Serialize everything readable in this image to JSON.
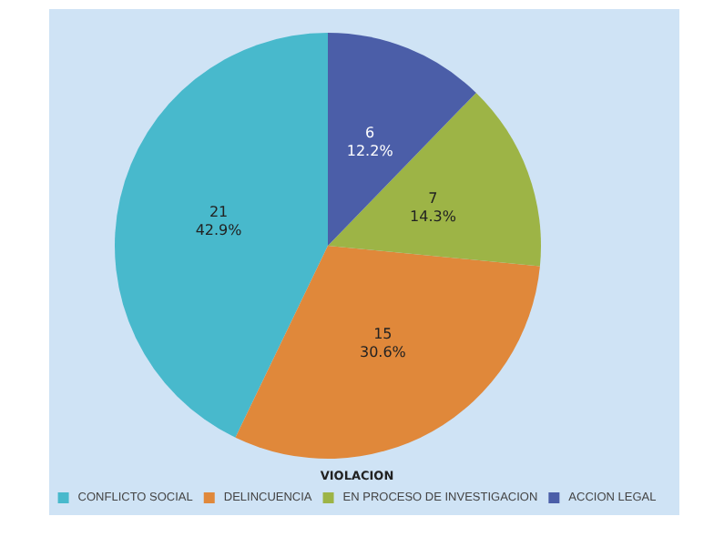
{
  "chart_data": {
    "type": "pie",
    "legend_title": "VIOLACION",
    "categories": [
      "CONFLICTO SOCIAL",
      "DELINCUENCIA",
      "EN PROCESO DE INVESTIGACION",
      "ACCION LEGAL"
    ],
    "values": [
      21,
      15,
      7,
      6
    ],
    "value_labels": [
      "21\n42.9%",
      "15\n30.6%",
      "7\n14.3%",
      "6\n12.2%"
    ],
    "colors": [
      "#48b9cc",
      "#e0883a",
      "#9db446",
      "#4b5ea8"
    ],
    "legend": "bottom"
  }
}
